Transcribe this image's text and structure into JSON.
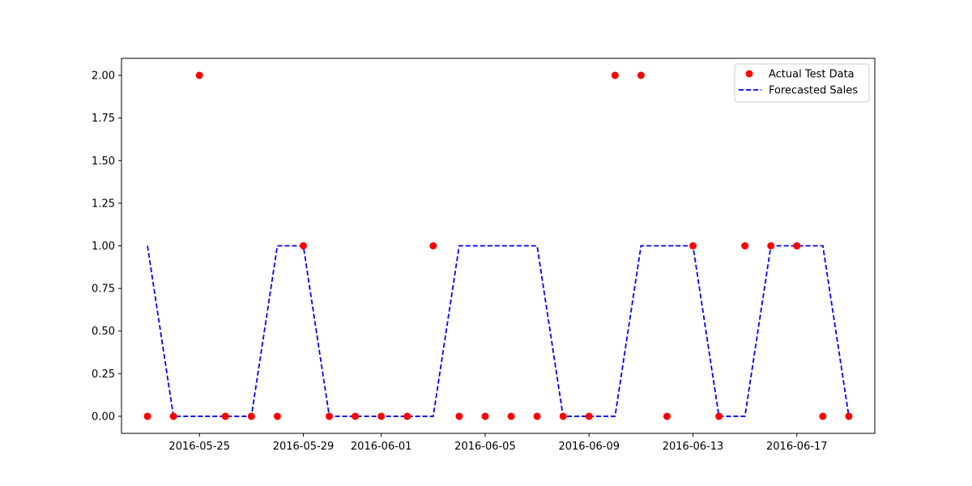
{
  "chart_data": {
    "type": "line",
    "title": "",
    "xlabel": "",
    "ylabel": "",
    "x": [
      "2016-05-23",
      "2016-05-24",
      "2016-05-25",
      "2016-05-26",
      "2016-05-27",
      "2016-05-28",
      "2016-05-29",
      "2016-05-30",
      "2016-05-31",
      "2016-06-01",
      "2016-06-02",
      "2016-06-03",
      "2016-06-04",
      "2016-06-05",
      "2016-06-06",
      "2016-06-07",
      "2016-06-08",
      "2016-06-09",
      "2016-06-10",
      "2016-06-11",
      "2016-06-12",
      "2016-06-13",
      "2016-06-14",
      "2016-06-15",
      "2016-06-16",
      "2016-06-17",
      "2016-06-18",
      "2016-06-19"
    ],
    "series": [
      {
        "name": "Actual Test Data",
        "style": "markers",
        "color": "#ff0000",
        "values": [
          0,
          0,
          2,
          0,
          0,
          0,
          1,
          0,
          0,
          0,
          0,
          1,
          0,
          0,
          0,
          0,
          0,
          0,
          2,
          2,
          0,
          1,
          0,
          1,
          1,
          1,
          0,
          0
        ]
      },
      {
        "name": "Forecasted Sales",
        "style": "dashed-line",
        "color": "#0000ff",
        "values": [
          1,
          0,
          0,
          0,
          0,
          1,
          1,
          0,
          0,
          0,
          0,
          0,
          1,
          1,
          1,
          1,
          0,
          0,
          0,
          1,
          1,
          1,
          0,
          0,
          1,
          1,
          1,
          0
        ]
      }
    ],
    "xlim": [
      "2016-05-22",
      "2016-06-20"
    ],
    "ylim": [
      -0.1,
      2.1
    ],
    "xticks": [
      "2016-05-25",
      "2016-05-29",
      "2016-06-01",
      "2016-06-05",
      "2016-06-09",
      "2016-06-13",
      "2016-06-17"
    ],
    "yticks": [
      "0.00",
      "0.25",
      "0.50",
      "0.75",
      "1.00",
      "1.25",
      "1.50",
      "1.75",
      "2.00"
    ],
    "grid": false,
    "legend_position": "top-right"
  }
}
